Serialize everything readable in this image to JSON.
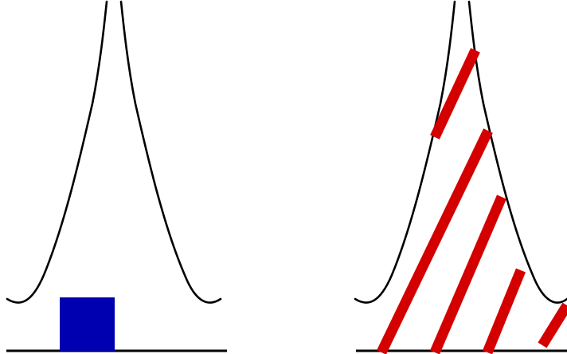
{
  "colors": {
    "curve": "#000000",
    "baseline": "#000000",
    "square": "#0000b0",
    "stripe": "#d40000",
    "background": "#ffffff"
  },
  "panels": [
    {
      "name": "left-panel",
      "fill": "solid-square"
    },
    {
      "name": "right-panel",
      "fill": "diagonal-stripes"
    }
  ]
}
